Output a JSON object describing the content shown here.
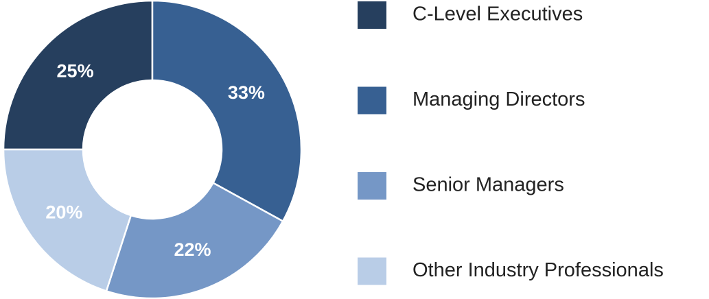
{
  "chart_data": {
    "type": "donut",
    "categories": [
      "C-Level Executives",
      "Managing Directors",
      "Senior Managers",
      "Other Industry Professionals"
    ],
    "values": [
      25,
      33,
      22,
      20
    ],
    "value_labels": [
      "25%",
      "33%",
      "22%",
      "20%"
    ],
    "colors": [
      "#263f5e",
      "#376092",
      "#7597c6",
      "#b9cde7"
    ],
    "legend": "right"
  }
}
